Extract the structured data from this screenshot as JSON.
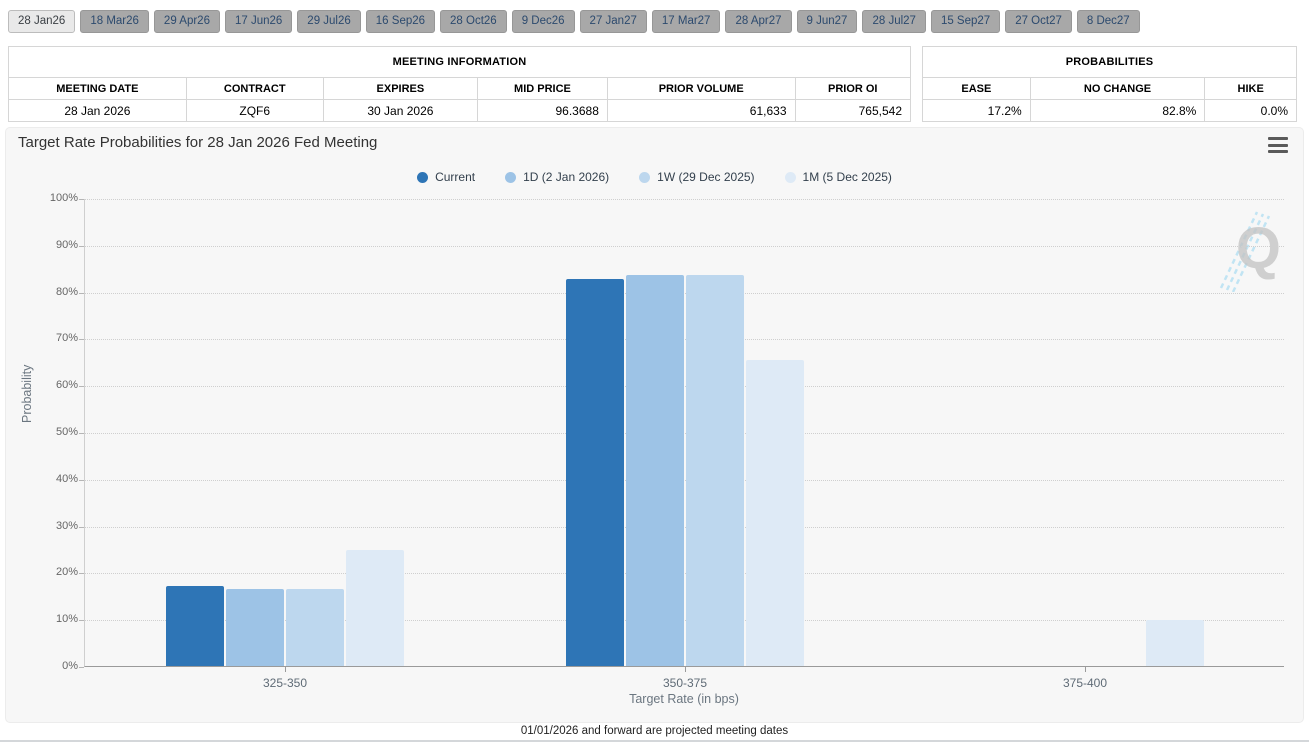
{
  "tabs": {
    "items": [
      {
        "label": "28 Jan26",
        "selected": true
      },
      {
        "label": "18 Mar26",
        "selected": false
      },
      {
        "label": "29 Apr26",
        "selected": false
      },
      {
        "label": "17 Jun26",
        "selected": false
      },
      {
        "label": "29 Jul26",
        "selected": false
      },
      {
        "label": "16 Sep26",
        "selected": false
      },
      {
        "label": "28 Oct26",
        "selected": false
      },
      {
        "label": "9 Dec26",
        "selected": false
      },
      {
        "label": "27 Jan27",
        "selected": false
      },
      {
        "label": "17 Mar27",
        "selected": false
      },
      {
        "label": "28 Apr27",
        "selected": false
      },
      {
        "label": "9 Jun27",
        "selected": false
      },
      {
        "label": "28 Jul27",
        "selected": false
      },
      {
        "label": "15 Sep27",
        "selected": false
      },
      {
        "label": "27 Oct27",
        "selected": false
      },
      {
        "label": "8 Dec27",
        "selected": false
      }
    ]
  },
  "meeting_info": {
    "title": "MEETING INFORMATION",
    "columns": [
      "MEETING DATE",
      "CONTRACT",
      "EXPIRES",
      "MID PRICE",
      "PRIOR VOLUME",
      "PRIOR OI"
    ],
    "col_widths_pct": [
      19.7,
      15.2,
      17.1,
      14.4,
      20.8,
      12.8
    ],
    "row": [
      "28 Jan 2026",
      "ZQF6",
      "30 Jan 2026",
      "96.3688",
      "61,633",
      "765,542"
    ],
    "align": [
      "center",
      "center",
      "center",
      "right",
      "right",
      "right"
    ]
  },
  "probabilities": {
    "title": "PROBABILITIES",
    "columns": [
      "EASE",
      "NO CHANGE",
      "HIKE"
    ],
    "col_widths_pct": [
      28.8,
      46.7,
      24.5
    ],
    "row": [
      "17.2%",
      "82.8%",
      "0.0%"
    ],
    "align": [
      "right",
      "right",
      "right"
    ]
  },
  "chart": {
    "title": "Target Rate Probabilities for 28 Jan 2026 Fed Meeting",
    "menu_icon": "hamburger-menu-icon",
    "watermark_letter": "Q"
  },
  "chart_data": {
    "type": "bar",
    "title": "Target Rate Probabilities for 28 Jan 2026 Fed Meeting",
    "categories": [
      "325-350",
      "350-375",
      "375-400"
    ],
    "series": [
      {
        "name": "Current",
        "color": "#2E75B6",
        "values": [
          17.2,
          82.8,
          0.0
        ]
      },
      {
        "name": "1D (2 Jan 2026)",
        "color": "#9DC3E6",
        "values": [
          16.5,
          83.5,
          0.0
        ]
      },
      {
        "name": "1W (29 Dec 2025)",
        "color": "#BDD7EE",
        "values": [
          16.5,
          83.5,
          0.0
        ]
      },
      {
        "name": "1M (5 Dec 2025)",
        "color": "#DEEAF6",
        "values": [
          24.8,
          65.4,
          9.8
        ]
      }
    ],
    "xlabel": "Target Rate (in bps)",
    "ylabel": "Probability",
    "ylim": [
      0,
      100
    ],
    "ytick_step": 10,
    "ytick_suffix": "%",
    "legend_position": "top",
    "grid": "dotted-horizontal"
  },
  "footer": {
    "note": "01/01/2026 and forward are projected meeting dates"
  }
}
